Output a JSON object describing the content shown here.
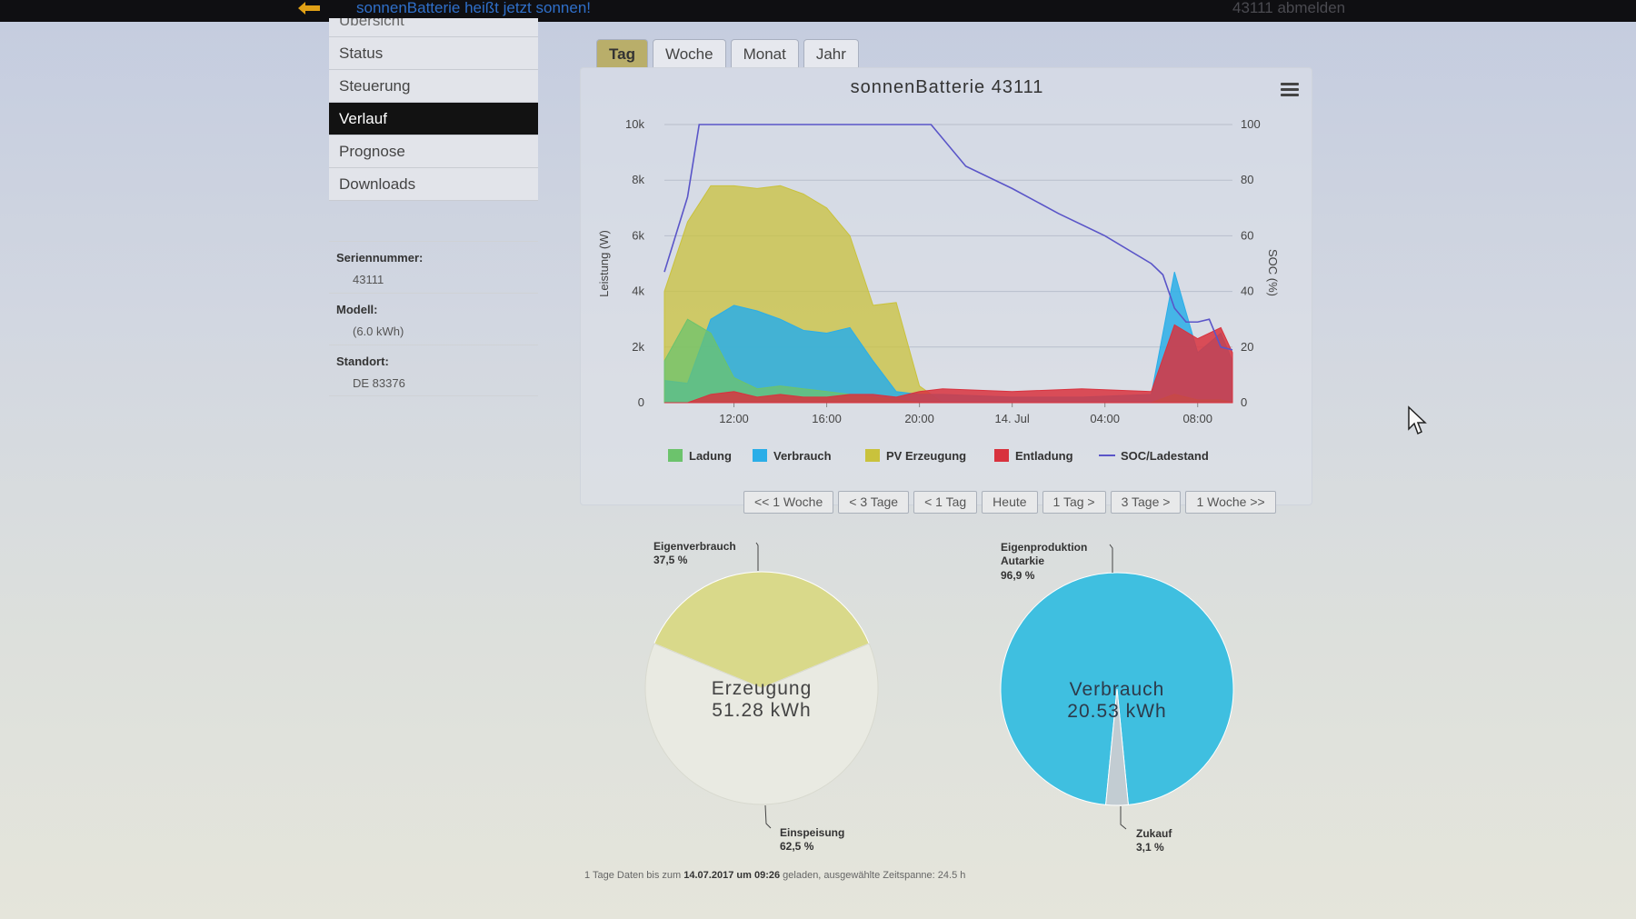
{
  "topbar": {
    "banner": "sonnenBatterie heißt jetzt sonnen!",
    "logout": "43111 abmelden"
  },
  "sidebar": {
    "items": [
      {
        "label": "Übersicht",
        "active": false
      },
      {
        "label": "Status",
        "active": false
      },
      {
        "label": "Steuerung",
        "active": false
      },
      {
        "label": "Verlauf",
        "active": true
      },
      {
        "label": "Prognose",
        "active": false
      },
      {
        "label": "Downloads",
        "active": false
      }
    ]
  },
  "info": {
    "serial_label": "Seriennummer:",
    "serial_value": "43111",
    "model_label": "Modell:",
    "model_value": "(6.0 kWh)",
    "location_label": "Standort:",
    "location_value": "DE 83376"
  },
  "tabs": [
    {
      "label": "Tag",
      "active": true
    },
    {
      "label": "Woche",
      "active": false
    },
    {
      "label": "Monat",
      "active": false
    },
    {
      "label": "Jahr",
      "active": false
    }
  ],
  "range_buttons": [
    "<< 1 Woche",
    "< 3 Tage",
    "< 1 Tag",
    "Heute",
    "1 Tag >",
    "3 Tage >",
    "1 Woche >>"
  ],
  "colors": {
    "ladung": "#6cc36c",
    "verbrauch": "#2aaee8",
    "pv": "#c9c23c",
    "entladung": "#d8323e",
    "soc": "#5a55c8",
    "erzeugung_pie": "#d9d98a",
    "verbrauch_pie": "#3fbfe0",
    "zukauf_pie": "#c2ccd2",
    "active_tab": "#b9ae6a"
  },
  "chart_data": [
    {
      "type": "area",
      "title": "sonnenBatterie 43111",
      "ylabel": "Leistung (W)",
      "y2label": "SOC (%)",
      "x_ticks": [
        "12:00",
        "16:00",
        "20:00",
        "14. Jul",
        "04:00",
        "08:00"
      ],
      "y_ticks": [
        "0",
        "2k",
        "4k",
        "6k",
        "8k",
        "10k"
      ],
      "y2_ticks": [
        "0",
        "20",
        "40",
        "60",
        "80",
        "100"
      ],
      "ylim": [
        0,
        10000
      ],
      "y2lim": [
        0,
        100
      ],
      "x_hours": [
        9.0,
        33.5
      ],
      "legend_position": "bottom",
      "series": [
        {
          "name": "Ladung",
          "x": [
            9,
            10,
            11,
            12,
            13,
            14,
            15,
            16,
            17,
            18,
            19,
            20,
            21,
            24,
            27,
            30,
            31,
            32,
            33,
            33.5
          ],
          "values": [
            1500,
            3000,
            2500,
            900,
            500,
            600,
            500,
            400,
            300,
            200,
            100,
            0,
            0,
            0,
            0,
            0,
            300,
            100,
            100,
            0
          ]
        },
        {
          "name": "Verbrauch",
          "x": [
            9,
            10,
            11,
            12,
            13,
            14,
            15,
            16,
            17,
            18,
            19,
            20,
            21,
            24,
            27,
            30,
            31,
            32,
            33,
            33.5
          ],
          "values": [
            800,
            700,
            3000,
            3500,
            3300,
            3000,
            2600,
            2500,
            2700,
            1500,
            400,
            300,
            300,
            200,
            200,
            300,
            4700,
            1800,
            2500,
            1500
          ]
        },
        {
          "name": "PV Erzeugung",
          "x": [
            9,
            10,
            11,
            12,
            13,
            14,
            15,
            16,
            17,
            18,
            19,
            20,
            21,
            24,
            27,
            30,
            31,
            32,
            33,
            33.5
          ],
          "values": [
            4000,
            6500,
            7800,
            7800,
            7700,
            7800,
            7500,
            7000,
            6000,
            3500,
            3600,
            600,
            0,
            0,
            0,
            0,
            0,
            0,
            0,
            0
          ]
        },
        {
          "name": "Entladung",
          "x": [
            9,
            10,
            11,
            12,
            13,
            14,
            15,
            16,
            17,
            18,
            19,
            20,
            21,
            24,
            27,
            30,
            31,
            32,
            33,
            33.5
          ],
          "values": [
            0,
            0,
            300,
            400,
            200,
            300,
            200,
            200,
            300,
            300,
            200,
            400,
            500,
            400,
            500,
            400,
            2800,
            2300,
            2700,
            1800
          ]
        },
        {
          "name": "SOC/Ladestand",
          "x": [
            9,
            10,
            10.5,
            11,
            14,
            16,
            20.5,
            22,
            24,
            26,
            28,
            30,
            30.5,
            31,
            31.5,
            32,
            32.5,
            33,
            33.5
          ],
          "values": [
            47,
            74,
            100,
            100,
            100,
            100,
            100,
            85,
            77,
            68,
            60,
            50,
            46,
            34,
            29,
            29,
            30,
            20,
            19
          ]
        }
      ]
    },
    {
      "type": "pie",
      "center_label": "Erzeugung",
      "center_value": "51.28 kWh",
      "slices": [
        {
          "name": "Eigenverbrauch",
          "value": 37.5,
          "label": "37,5 %"
        },
        {
          "name": "Einspeisung",
          "value": 62.5,
          "label": "62,5 %"
        }
      ]
    },
    {
      "type": "pie",
      "center_label": "Verbrauch",
      "center_value": "20.53 kWh",
      "slices": [
        {
          "name": "Eigenproduktion Autarkie",
          "value": 96.9,
          "label": "96,9 %"
        },
        {
          "name": "Zukauf",
          "value": 3.1,
          "label": "3,1 %"
        }
      ]
    }
  ],
  "footer": {
    "prefix": "1 Tage Daten bis zum",
    "date": "14.07.2017",
    "mid": "um",
    "time": "09:26",
    "suffix": "geladen, ausgewählte Zeitspanne: 24.5 h"
  }
}
